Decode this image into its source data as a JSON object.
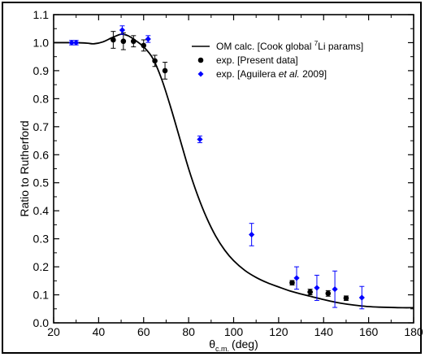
{
  "chart_data": {
    "type": "scatter",
    "xlabel": "θc.m. (deg)",
    "xlabel_symbol": "θ",
    "xlabel_sub": "c.m.",
    "xlabel_unit": "(deg)",
    "ylabel": "Ratio to Rutherford",
    "xlim": [
      20,
      180
    ],
    "ylim": [
      0.0,
      1.1
    ],
    "x_ticks": [
      20,
      40,
      60,
      80,
      100,
      120,
      140,
      160,
      180
    ],
    "y_ticks": [
      "0.0",
      "0.1",
      "0.2",
      "0.3",
      "0.4",
      "0.5",
      "0.6",
      "0.7",
      "0.8",
      "0.9",
      "1.0",
      "1.1"
    ],
    "grid": false,
    "legend_position": "top-right",
    "legend": [
      {
        "label": "OM calc. [Cook global 7Li params]",
        "prefix": "OM calc. [Cook global ",
        "sup": "7",
        "suffix": "Li params]",
        "marker": "line",
        "color": "#000000"
      },
      {
        "label": "exp. [Present data]",
        "marker": "circle",
        "color": "#000000"
      },
      {
        "label_parts": [
          "exp. [Aguilera ",
          "et al.",
          " 2009]"
        ],
        "label": "exp. [Aguilera et al. 2009]",
        "marker": "diamond",
        "color": "#0000ff"
      }
    ],
    "series": [
      {
        "name": "OM calc. [Cook global 7Li params]",
        "kind": "line",
        "color": "#000000",
        "x": [
          20,
          25,
          30,
          35,
          38,
          42,
          46,
          50,
          53,
          56,
          60,
          64,
          68,
          72,
          76,
          80,
          84,
          88,
          92,
          96,
          100,
          105,
          110,
          115,
          120,
          125,
          130,
          135,
          140,
          145,
          150,
          155,
          160,
          165,
          170,
          175,
          180
        ],
        "y": [
          1.0,
          1.0,
          1.0,
          0.998,
          0.996,
          1.003,
          1.018,
          1.03,
          1.025,
          1.01,
          0.985,
          0.945,
          0.87,
          0.77,
          0.66,
          0.55,
          0.455,
          0.375,
          0.31,
          0.26,
          0.222,
          0.187,
          0.162,
          0.143,
          0.128,
          0.114,
          0.103,
          0.093,
          0.083,
          0.074,
          0.067,
          0.062,
          0.058,
          0.056,
          0.055,
          0.054,
          0.054
        ]
      },
      {
        "name": "exp. [Present data]",
        "kind": "points",
        "marker": "circle",
        "color": "#000000",
        "x": [
          46.5,
          51,
          55.5,
          60,
          65,
          69.5,
          126,
          134,
          142,
          150
        ],
        "y": [
          1.01,
          1.005,
          1.005,
          0.99,
          0.935,
          0.9,
          0.143,
          0.11,
          0.105,
          0.088
        ],
        "err": [
          0.03,
          0.03,
          0.02,
          0.02,
          0.02,
          0.03,
          0.008,
          0.01,
          0.01,
          0.008
        ]
      },
      {
        "name": "exp. [Aguilera et al. 2009]",
        "kind": "points",
        "marker": "diamond",
        "color": "#0000ff",
        "x": [
          28,
          30,
          50.5,
          62,
          85,
          108,
          128,
          137,
          145,
          157
        ],
        "y": [
          1.0,
          1.0,
          1.045,
          1.013,
          0.655,
          0.315,
          0.16,
          0.125,
          0.12,
          0.09
        ],
        "err": [
          0.008,
          0.008,
          0.015,
          0.012,
          0.012,
          0.04,
          0.04,
          0.045,
          0.065,
          0.04
        ]
      }
    ]
  }
}
